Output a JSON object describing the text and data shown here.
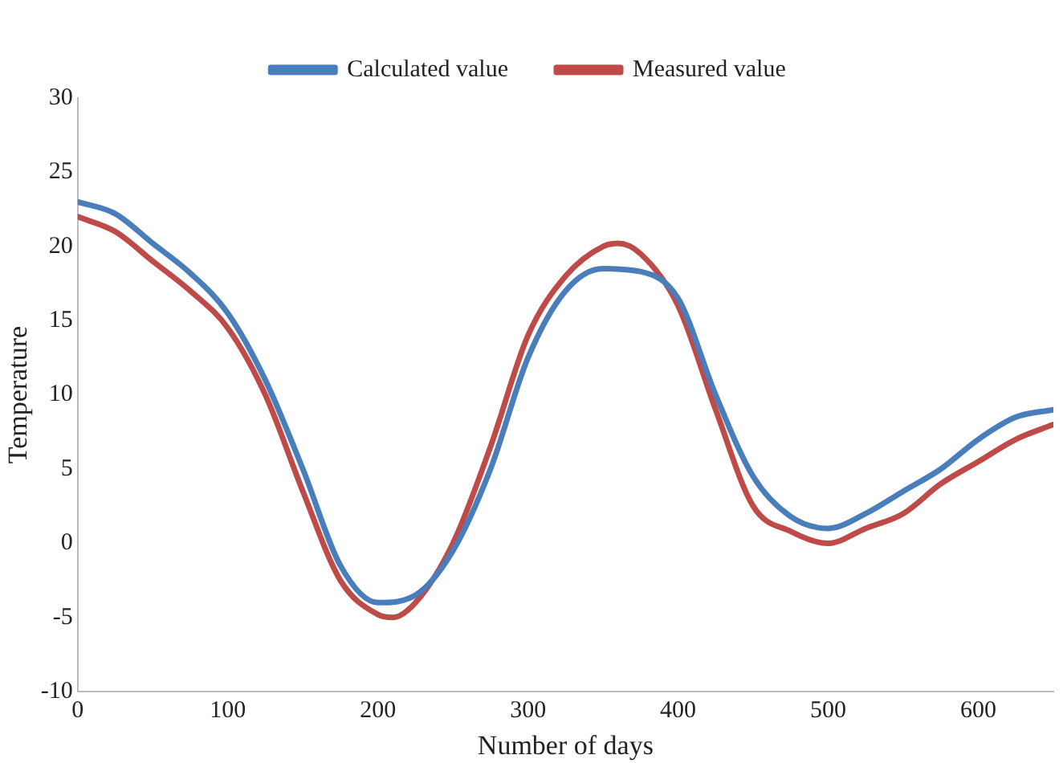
{
  "chart_data": {
    "type": "line",
    "xlabel": "Number of days",
    "ylabel": "Temperature",
    "xlim": [
      0,
      650
    ],
    "xticks": [
      0,
      100,
      200,
      300,
      400,
      500,
      600
    ],
    "ylim": [
      -10,
      30
    ],
    "yticks": [
      -10,
      -5,
      0,
      5,
      10,
      15,
      20,
      25,
      30
    ],
    "legend": "top",
    "grid": false,
    "marker": "none",
    "line_style": "solid",
    "series": [
      {
        "name": "Calculated value",
        "color": "#4a7ebb",
        "x": [
          0,
          25,
          50,
          75,
          100,
          125,
          150,
          175,
          200,
          225,
          250,
          275,
          300,
          325,
          350,
          375,
          400,
          425,
          450,
          475,
          500,
          525,
          550,
          575,
          600,
          625,
          650
        ],
        "values": [
          23,
          22.2,
          20.2,
          18.2,
          15.5,
          11,
          5,
          -1.5,
          -4,
          -3.5,
          -0.5,
          5,
          12.5,
          17,
          18.5,
          18.3,
          16.5,
          10,
          4.5,
          1.8,
          1,
          2,
          3.5,
          5,
          7,
          8.5,
          9
        ]
      },
      {
        "name": "Measured value",
        "color": "#be4b48",
        "x": [
          0,
          25,
          50,
          75,
          100,
          125,
          150,
          175,
          200,
          210,
          225,
          250,
          275,
          300,
          325,
          350,
          360,
          375,
          400,
          425,
          450,
          475,
          500,
          525,
          550,
          575,
          600,
          625,
          650
        ],
        "values": [
          22,
          21,
          19,
          17,
          14.5,
          10,
          3.5,
          -2.5,
          -4.8,
          -5,
          -4,
          0,
          6.5,
          14,
          18,
          20,
          20.2,
          19.5,
          16,
          9,
          2.5,
          0.8,
          0,
          1,
          2,
          4,
          5.5,
          7,
          8
        ]
      }
    ]
  }
}
